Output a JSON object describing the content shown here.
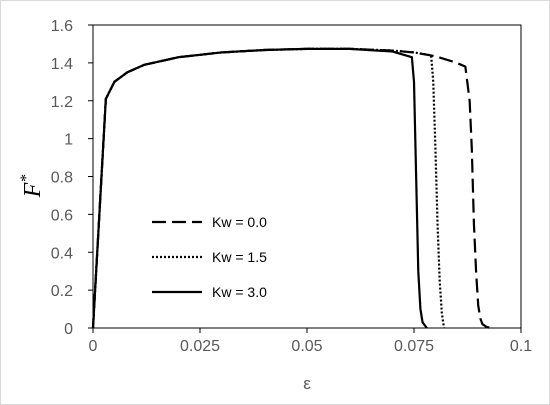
{
  "chart_data": {
    "type": "line",
    "xlabel": "ε",
    "ylabel_main": "F",
    "ylabel_sup": "*",
    "xlim": [
      0,
      0.1
    ],
    "ylim": [
      0,
      1.6
    ],
    "x_ticks": [
      "0",
      "0.025",
      "0.05",
      "0.075",
      "0.1"
    ],
    "y_ticks": [
      "0",
      "0.2",
      "0.4",
      "0.6",
      "0.8",
      "1",
      "1.2",
      "1.4",
      "1.6"
    ],
    "grid": false,
    "legend": "left",
    "series": [
      {
        "name": "Kw = 0.0",
        "style": "dashed",
        "x": [
          0,
          0.003,
          0.005,
          0.008,
          0.012,
          0.02,
          0.03,
          0.04,
          0.05,
          0.06,
          0.07,
          0.075,
          0.08,
          0.085,
          0.087,
          0.088,
          0.0885,
          0.089,
          0.0895,
          0.09,
          0.0905,
          0.091,
          0.092,
          0.093
        ],
        "y": [
          0,
          1.21,
          1.3,
          1.35,
          1.39,
          1.43,
          1.455,
          1.468,
          1.474,
          1.474,
          1.465,
          1.455,
          1.435,
          1.4,
          1.38,
          1.2,
          0.95,
          0.55,
          0.3,
          0.12,
          0.05,
          0.02,
          0.005,
          0
        ]
      },
      {
        "name": "Kw = 1.5",
        "style": "dotted",
        "x": [
          0,
          0.003,
          0.005,
          0.008,
          0.012,
          0.02,
          0.03,
          0.04,
          0.05,
          0.06,
          0.07,
          0.075,
          0.079,
          0.0795,
          0.08,
          0.0805,
          0.081,
          0.0815,
          0.082
        ],
        "y": [
          0,
          1.21,
          1.3,
          1.35,
          1.39,
          1.43,
          1.455,
          1.468,
          1.474,
          1.474,
          1.465,
          1.455,
          1.44,
          1.3,
          0.95,
          0.55,
          0.25,
          0.08,
          0
        ]
      },
      {
        "name": "Kw = 3.0",
        "style": "solid",
        "x": [
          0,
          0.003,
          0.005,
          0.008,
          0.012,
          0.02,
          0.03,
          0.04,
          0.05,
          0.06,
          0.07,
          0.0745,
          0.075,
          0.0755,
          0.076,
          0.0765,
          0.077,
          0.078
        ],
        "y": [
          0,
          1.21,
          1.3,
          1.35,
          1.39,
          1.43,
          1.455,
          1.468,
          1.474,
          1.474,
          1.46,
          1.43,
          1.3,
          0.8,
          0.3,
          0.1,
          0.03,
          0
        ]
      }
    ],
    "colors": {
      "line": "#000000",
      "axis": "#bfbfbf",
      "tick_text": "#595959"
    }
  }
}
